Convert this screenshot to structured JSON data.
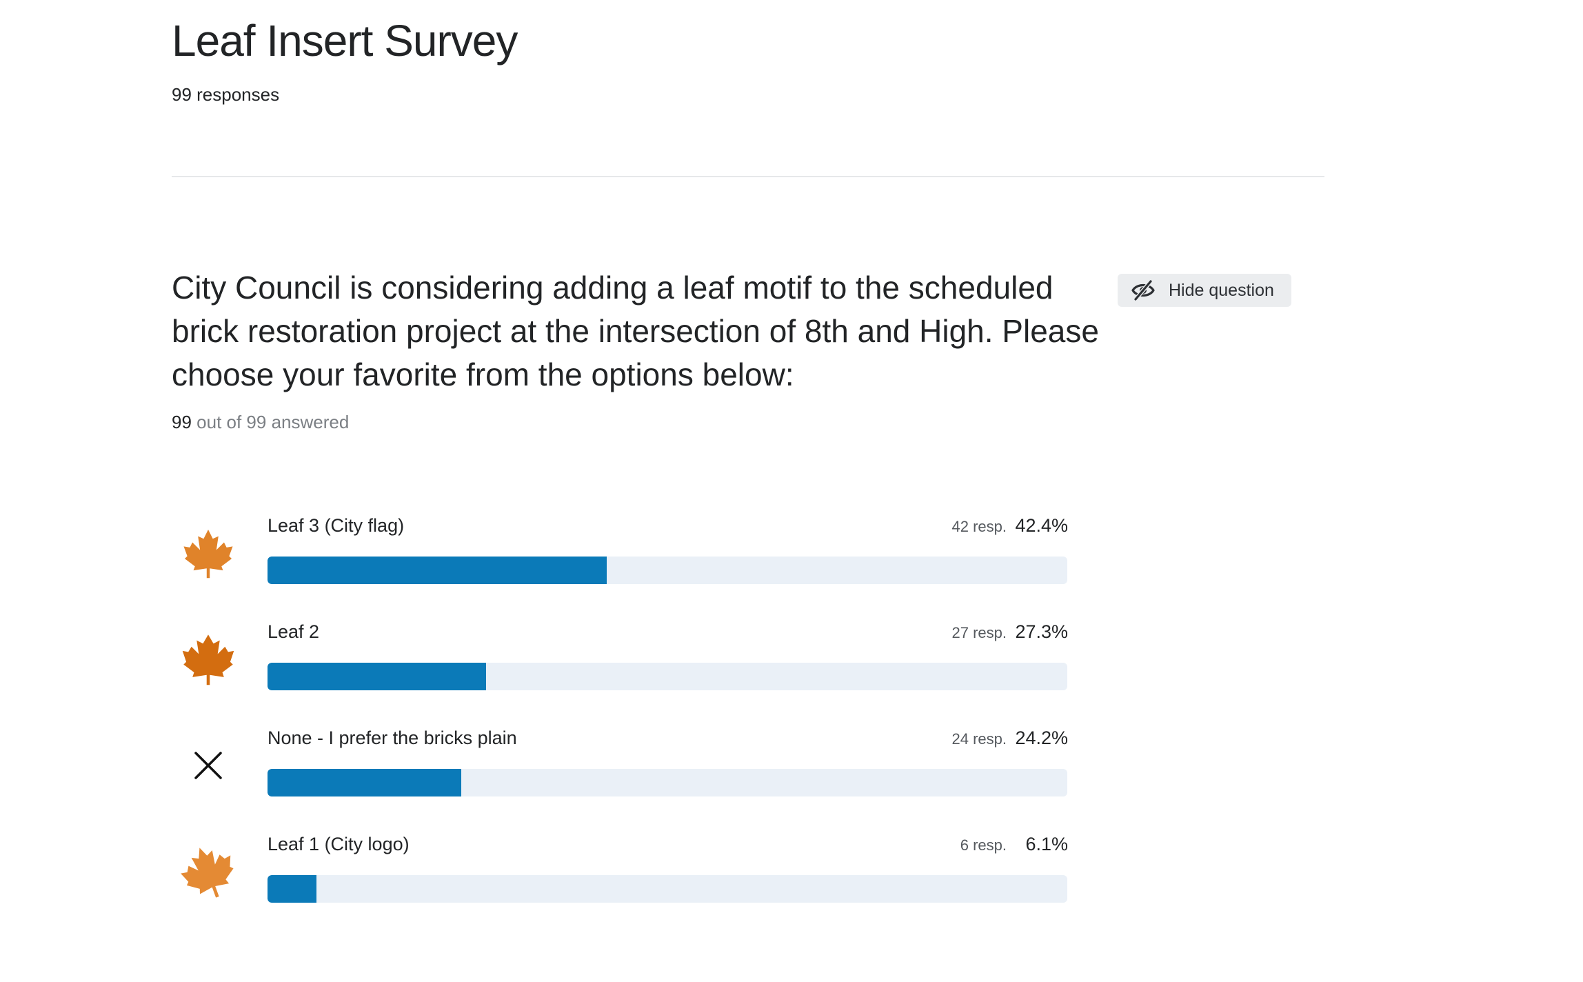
{
  "survey": {
    "title": "Leaf Insert Survey",
    "responses_text": "99 responses"
  },
  "question": {
    "text": "City Council is considering adding a leaf motif to the scheduled brick restoration project at the intersection of 8th and High. Please choose your favorite from the options below:",
    "hide_label": "Hide question",
    "answered_count": "99",
    "answered_rest": "out of 99 answered"
  },
  "options": [
    {
      "label": "Leaf 3 (City flag)",
      "responses": "42 resp.",
      "percent": "42.4%",
      "fraction": 0.424,
      "icon": "maple-leaf-flag-icon",
      "color": "#e0832a"
    },
    {
      "label": "Leaf 2",
      "responses": "27 resp.",
      "percent": "27.3%",
      "fraction": 0.273,
      "icon": "maple-leaf-icon",
      "color": "#d36d10"
    },
    {
      "label": "None - I prefer the bricks plain",
      "responses": "24 resp.",
      "percent": "24.2%",
      "fraction": 0.242,
      "icon": "close-x-icon",
      "color": "#111111"
    },
    {
      "label": "Leaf 1 (City logo)",
      "responses": "6 resp.",
      "percent": "6.1%",
      "fraction": 0.061,
      "icon": "maple-leaf-logo-icon",
      "color": "#e48a34"
    }
  ],
  "colors": {
    "bar_fill": "#0b7ab8",
    "bar_track": "#eaf0f7"
  }
}
